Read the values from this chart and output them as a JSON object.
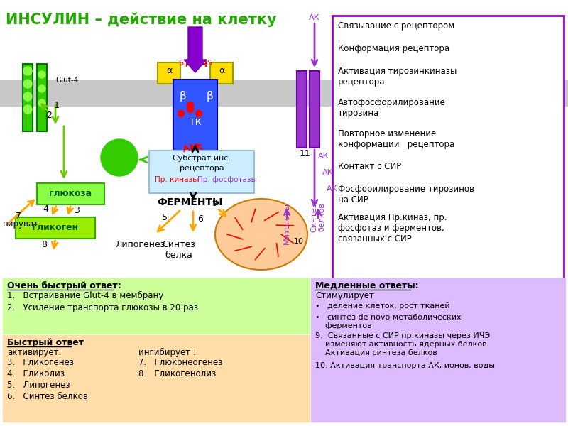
{
  "title": "ИНСУЛИН – действие на клетку",
  "title_color": "#22aa00",
  "bg_color": "#ffffff",
  "right_box_items": [
    "Связывание с рецептором",
    "Конформация рецептора",
    "Активация тирозинкиназы\nрецептора",
    "Автофосфорилирование\nтирозина",
    "Повторное изменение\nконформации   рецептора",
    "Контакт с СИР",
    "Фосфорилирование тирозинов\nна СИР",
    "Активация Пр.киназ, пр.\nфосфотаз и ферментов,\nсвязанных с СИР"
  ],
  "right_box_border": "#9900cc",
  "green_fast_title": "Очень быстрый ответ:",
  "green_fast_items": [
    "1.   Встраивание Glut-4 в мембрану",
    "2.   Усиление транспорта глюкозы в 20 раз"
  ],
  "green_fast_bg": "#ccff99",
  "orange_fast_title": "Быстрый ответ",
  "orange_fast_act_label": "активирует:",
  "orange_fast_inh_label": "ингибирует :",
  "orange_fast_activates": [
    "3.   Гликогенез",
    "4.   Гликолиз",
    "5.   Липогенез",
    "6.   Синтез белков"
  ],
  "orange_fast_inhibits": [
    "7.   Глюконеогенез",
    "8.   Гликогенолиз"
  ],
  "orange_fast_bg": "#ffddaa",
  "purple_slow_title": "Медленные ответы:",
  "purple_slow_stim": "Стимулирует",
  "purple_slow_items": [
    "•   деление клеток, рост тканей",
    "•   синтез de novo метаболических\n    ферментов",
    "9.  Связанные с СИР пр.киназы через ИЧЭ\n    изменяют активность ядерных белков.\n    Активация синтеза белков",
    "10. Активация транспорта АК, ионов, воды"
  ],
  "purple_slow_bg": "#ddbbff",
  "membrane_color": "#c8c8c8",
  "glut4_color": "#33cc00",
  "glut4_border": "#007700",
  "glucose_color": "#33cc00",
  "glycogen_color": "#99ee00",
  "receptor_alpha_color": "#ffdd00",
  "receptor_beta_color": "#3355ff",
  "insulin_color": "#8800cc",
  "right_receptor_color": "#9933cc",
  "substrate_box_color": "#cceeff",
  "nucleus_color": "#ffcc99",
  "nucleus_border": "#cc7700"
}
